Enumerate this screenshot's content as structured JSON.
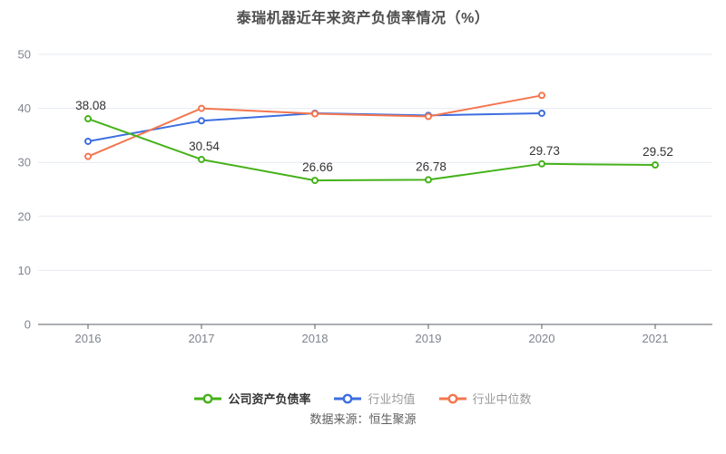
{
  "chart_data": {
    "type": "line",
    "title": "泰瑞机器近年来资产负债率情况（%）",
    "x": [
      "2016",
      "2017",
      "2018",
      "2019",
      "2020",
      "2021"
    ],
    "series": [
      {
        "name": "公司资产负债率",
        "color": "#45b21a",
        "values": [
          38.08,
          30.54,
          26.66,
          26.78,
          29.73,
          29.52
        ],
        "point_labels": [
          "38.08",
          "30.54",
          "26.66",
          "26.78",
          "29.73",
          "29.52"
        ]
      },
      {
        "name": "行业均值",
        "color": "#3d6ee0",
        "values": [
          33.9,
          37.7,
          39.1,
          38.7,
          39.1
        ]
      },
      {
        "name": "行业中位数",
        "color": "#f4764f",
        "values": [
          31.1,
          40.0,
          39.0,
          38.5,
          42.4
        ]
      }
    ],
    "ylim": [
      0,
      50
    ],
    "yticks": [
      0,
      10,
      20,
      30,
      40,
      50
    ],
    "grid": true,
    "legend_position": "bottom",
    "source": "数据来源：恒生聚源",
    "colors": {
      "grid_line": "#e6e9f2",
      "axis_line": "#585c64",
      "tick_label": "#7f848e",
      "data_label": "#333333"
    }
  }
}
